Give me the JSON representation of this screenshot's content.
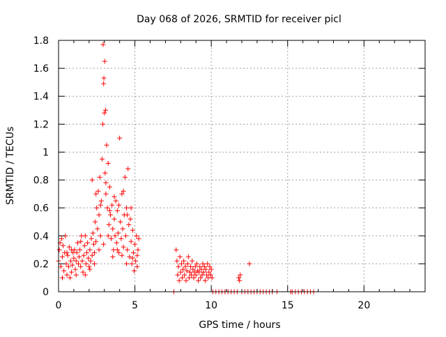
{
  "chart_data": {
    "type": "scatter",
    "title": "Day 068 of 2026, SRMTID for receiver picl",
    "xlabel": "GPS time / hours",
    "ylabel": "SRMTID / TECUs",
    "xlim": [
      0,
      24
    ],
    "ylim": [
      0,
      1.8
    ],
    "xticks": [
      0,
      5,
      10,
      15,
      20
    ],
    "xtick_labels": [
      "0",
      "5",
      "10",
      "15",
      "20"
    ],
    "yticks": [
      0,
      0.2,
      0.4,
      0.6,
      0.8,
      1.0,
      1.2,
      1.4,
      1.6,
      1.8
    ],
    "ytick_labels": [
      "0",
      "0.2",
      "0.4",
      "0.6",
      "0.8",
      "1",
      "1.2",
      "1.4",
      "1.6",
      "1.8"
    ],
    "grid": true,
    "marker": "+",
    "marker_color": "#ff0000",
    "series": [
      {
        "name": "SRMTID",
        "points": [
          [
            0.0,
            0.22
          ],
          [
            0.05,
            0.3
          ],
          [
            0.1,
            0.35
          ],
          [
            0.15,
            0.18
          ],
          [
            0.2,
            0.38
          ],
          [
            0.25,
            0.25
          ],
          [
            0.3,
            0.33
          ],
          [
            0.35,
            0.15
          ],
          [
            0.4,
            0.28
          ],
          [
            0.45,
            0.4
          ],
          [
            0.5,
            0.2
          ],
          [
            0.55,
            0.12
          ],
          [
            0.6,
            0.26
          ],
          [
            0.65,
            0.18
          ],
          [
            0.7,
            0.32
          ],
          [
            0.75,
            0.1
          ],
          [
            0.8,
            0.22
          ],
          [
            0.85,
            0.14
          ],
          [
            0.9,
            0.19
          ],
          [
            0.95,
            0.28
          ],
          [
            1.0,
            0.24
          ],
          [
            1.05,
            0.3
          ],
          [
            1.1,
            0.16
          ],
          [
            1.15,
            0.22
          ],
          [
            1.2,
            0.28
          ],
          [
            1.25,
            0.35
          ],
          [
            1.3,
            0.2
          ],
          [
            1.35,
            0.25
          ],
          [
            1.4,
            0.3
          ],
          [
            1.45,
            0.18
          ],
          [
            1.5,
            0.4
          ],
          [
            1.55,
            0.22
          ],
          [
            1.6,
            0.14
          ],
          [
            1.65,
            0.26
          ],
          [
            1.7,
            0.33
          ],
          [
            1.75,
            0.12
          ],
          [
            1.8,
            0.2
          ],
          [
            1.85,
            0.28
          ],
          [
            1.9,
            0.35
          ],
          [
            1.95,
            0.24
          ],
          [
            2.0,
            0.18
          ],
          [
            2.05,
            0.3
          ],
          [
            2.1,
            0.22
          ],
          [
            2.15,
            0.38
          ],
          [
            2.2,
            0.26
          ],
          [
            2.25,
            0.42
          ],
          [
            2.3,
            0.34
          ],
          [
            2.35,
            0.28
          ],
          [
            2.4,
            0.5
          ],
          [
            2.45,
            0.36
          ],
          [
            2.5,
            0.6
          ],
          [
            2.55,
            0.45
          ],
          [
            2.6,
            0.72
          ],
          [
            2.65,
            0.55
          ],
          [
            2.7,
            0.82
          ],
          [
            2.75,
            0.4
          ],
          [
            2.8,
            0.65
          ],
          [
            2.85,
            0.95
          ],
          [
            2.9,
            1.2
          ],
          [
            2.92,
            1.77
          ],
          [
            2.95,
            1.49
          ],
          [
            2.97,
            1.53
          ],
          [
            3.0,
            1.28
          ],
          [
            3.02,
            1.65
          ],
          [
            3.05,
            0.85
          ],
          [
            3.08,
            1.3
          ],
          [
            3.1,
            0.7
          ],
          [
            3.15,
            1.05
          ],
          [
            3.2,
            0.6
          ],
          [
            3.25,
            0.92
          ],
          [
            3.3,
            0.48
          ],
          [
            3.35,
            0.75
          ],
          [
            3.4,
            0.55
          ],
          [
            3.45,
            0.38
          ],
          [
            3.5,
            0.62
          ],
          [
            3.55,
            0.45
          ],
          [
            3.6,
            0.3
          ],
          [
            3.65,
            0.52
          ],
          [
            3.7,
            0.4
          ],
          [
            3.75,
            0.65
          ],
          [
            3.8,
            0.35
          ],
          [
            3.85,
            0.58
          ],
          [
            3.9,
            0.42
          ],
          [
            3.95,
            0.28
          ],
          [
            4.0,
            1.1
          ],
          [
            4.05,
            0.5
          ],
          [
            4.1,
            0.38
          ],
          [
            4.15,
            0.7
          ],
          [
            4.2,
            0.45
          ],
          [
            4.25,
            0.32
          ],
          [
            4.3,
            0.55
          ],
          [
            4.35,
            0.82
          ],
          [
            4.4,
            0.4
          ],
          [
            4.45,
            0.6
          ],
          [
            4.5,
            0.3
          ],
          [
            4.55,
            0.88
          ],
          [
            4.6,
            0.48
          ],
          [
            4.65,
            0.25
          ],
          [
            4.7,
            0.52
          ],
          [
            4.75,
            0.36
          ],
          [
            4.8,
            0.2
          ],
          [
            4.85,
            0.44
          ],
          [
            4.9,
            0.28
          ],
          [
            4.95,
            0.15
          ],
          [
            5.0,
            0.34
          ],
          [
            5.05,
            0.22
          ],
          [
            5.1,
            0.4
          ],
          [
            5.15,
            0.18
          ],
          [
            5.2,
            0.3
          ],
          [
            5.25,
            0.38
          ],
          [
            2.2,
            0.8
          ],
          [
            2.45,
            0.7
          ],
          [
            2.75,
            0.62
          ],
          [
            3.1,
            0.78
          ],
          [
            3.35,
            0.58
          ],
          [
            3.65,
            0.68
          ],
          [
            3.95,
            0.62
          ],
          [
            4.25,
            0.72
          ],
          [
            4.5,
            0.55
          ],
          [
            4.75,
            0.6
          ],
          [
            0.25,
            0.1
          ],
          [
            0.55,
            0.28
          ],
          [
            0.85,
            0.3
          ],
          [
            1.15,
            0.12
          ],
          [
            1.45,
            0.36
          ],
          [
            1.75,
            0.4
          ],
          [
            2.05,
            0.16
          ],
          [
            2.35,
            0.2
          ],
          [
            2.65,
            0.3
          ],
          [
            2.95,
            0.34
          ],
          [
            3.25,
            0.4
          ],
          [
            3.55,
            0.25
          ],
          [
            3.85,
            0.3
          ],
          [
            4.15,
            0.26
          ],
          [
            4.45,
            0.2
          ],
          [
            4.85,
            0.24
          ],
          [
            5.15,
            0.26
          ],
          [
            7.55,
            0.0
          ],
          [
            7.7,
            0.3
          ],
          [
            7.75,
            0.22
          ],
          [
            7.8,
            0.12
          ],
          [
            7.85,
            0.18
          ],
          [
            7.9,
            0.08
          ],
          [
            7.95,
            0.25
          ],
          [
            8.0,
            0.14
          ],
          [
            8.05,
            0.2
          ],
          [
            8.1,
            0.1
          ],
          [
            8.15,
            0.16
          ],
          [
            8.2,
            0.22
          ],
          [
            8.25,
            0.12
          ],
          [
            8.3,
            0.18
          ],
          [
            8.35,
            0.08
          ],
          [
            8.4,
            0.15
          ],
          [
            8.45,
            0.2
          ],
          [
            8.5,
            0.25
          ],
          [
            8.55,
            0.1
          ],
          [
            8.6,
            0.14
          ],
          [
            8.65,
            0.18
          ],
          [
            8.7,
            0.12
          ],
          [
            8.75,
            0.22
          ],
          [
            8.8,
            0.16
          ],
          [
            8.85,
            0.1
          ],
          [
            8.9,
            0.14
          ],
          [
            8.95,
            0.18
          ],
          [
            9.0,
            0.12
          ],
          [
            9.05,
            0.2
          ],
          [
            9.1,
            0.15
          ],
          [
            9.15,
            0.08
          ],
          [
            9.2,
            0.14
          ],
          [
            9.25,
            0.18
          ],
          [
            9.3,
            0.1
          ],
          [
            9.35,
            0.16
          ],
          [
            9.4,
            0.12
          ],
          [
            9.45,
            0.2
          ],
          [
            9.5,
            0.14
          ],
          [
            9.55,
            0.18
          ],
          [
            9.6,
            0.08
          ],
          [
            9.65,
            0.16
          ],
          [
            9.7,
            0.12
          ],
          [
            9.75,
            0.2
          ],
          [
            9.8,
            0.1
          ],
          [
            9.85,
            0.14
          ],
          [
            9.9,
            0.18
          ],
          [
            9.95,
            0.12
          ],
          [
            10.0,
            0.16
          ],
          [
            10.05,
            0.1
          ],
          [
            11.8,
            0.1
          ],
          [
            11.85,
            0.08
          ],
          [
            11.9,
            0.12
          ],
          [
            12.5,
            0.2
          ],
          [
            10.1,
            0.0
          ],
          [
            10.3,
            0.0
          ],
          [
            10.5,
            0.0
          ],
          [
            10.7,
            0.0
          ],
          [
            10.9,
            0.0
          ],
          [
            11.1,
            0.0
          ],
          [
            11.3,
            0.0
          ],
          [
            11.5,
            0.0
          ],
          [
            11.7,
            0.0
          ],
          [
            12.0,
            0.0
          ],
          [
            12.2,
            0.0
          ],
          [
            12.4,
            0.0
          ],
          [
            12.6,
            0.0
          ],
          [
            12.8,
            0.0
          ],
          [
            13.0,
            0.0
          ],
          [
            13.2,
            0.0
          ],
          [
            13.4,
            0.0
          ],
          [
            13.6,
            0.0
          ],
          [
            13.8,
            0.0
          ],
          [
            14.0,
            0.0
          ],
          [
            14.3,
            0.0
          ],
          [
            15.2,
            0.0
          ],
          [
            15.3,
            0.0
          ],
          [
            15.5,
            0.0
          ],
          [
            15.7,
            0.0
          ],
          [
            15.9,
            0.0
          ],
          [
            16.1,
            0.0
          ],
          [
            16.3,
            0.0
          ],
          [
            16.5,
            0.0
          ],
          [
            16.7,
            0.0
          ]
        ]
      }
    ]
  }
}
